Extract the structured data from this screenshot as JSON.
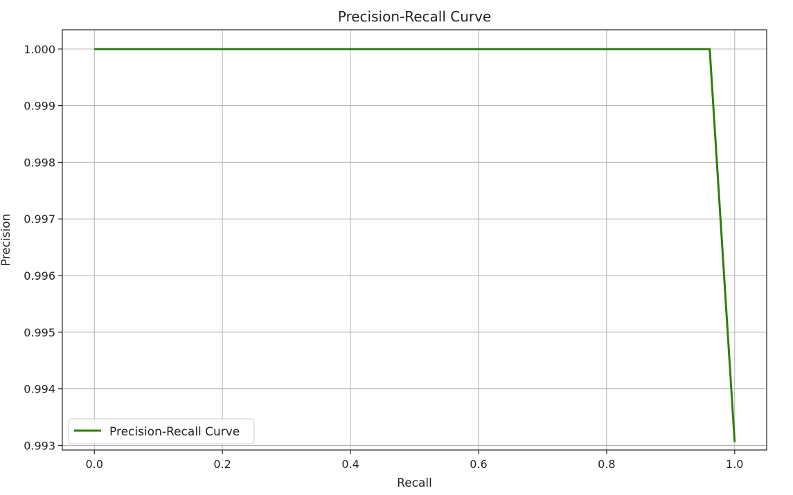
{
  "chart_data": {
    "type": "line",
    "title": "Precision-Recall Curve",
    "xlabel": "Recall",
    "ylabel": "Precision",
    "xlim": [
      -0.05,
      1.05
    ],
    "ylim": [
      0.99292,
      1.00034
    ],
    "x_ticks": [
      0.0,
      0.2,
      0.4,
      0.6,
      0.8,
      1.0
    ],
    "x_tick_labels": [
      "0.0",
      "0.2",
      "0.4",
      "0.6",
      "0.8",
      "1.0"
    ],
    "y_ticks": [
      0.993,
      0.994,
      0.995,
      0.996,
      0.997,
      0.998,
      0.999,
      1.0
    ],
    "y_tick_labels": [
      "0.993",
      "0.994",
      "0.995",
      "0.996",
      "0.997",
      "0.998",
      "0.999",
      "1.000"
    ],
    "grid": true,
    "legend_position": "lower-left",
    "series": [
      {
        "name": "Precision-Recall Curve",
        "color": "#2e7d0e",
        "x": [
          0.0,
          0.961,
          1.0
        ],
        "y": [
          1.0,
          1.0,
          0.99306
        ]
      }
    ]
  }
}
